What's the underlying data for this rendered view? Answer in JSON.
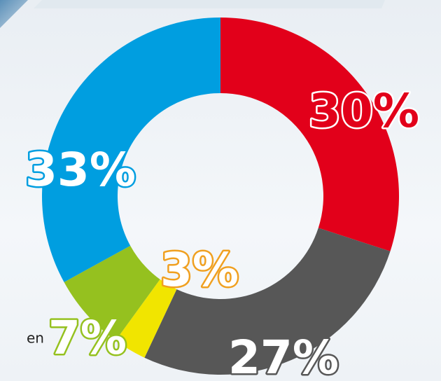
{
  "chart_data": {
    "type": "donut",
    "categories": [
      null,
      null,
      null,
      null,
      null
    ],
    "values": [
      30,
      27,
      3,
      7,
      33
    ],
    "value_labels": [
      "30%",
      "27%",
      "3%",
      "7%",
      "33%"
    ],
    "colors": [
      "#e2001a",
      "#575757",
      "#f1e500",
      "#95c11f",
      "#009ee0"
    ],
    "legend_fragment": "en"
  }
}
